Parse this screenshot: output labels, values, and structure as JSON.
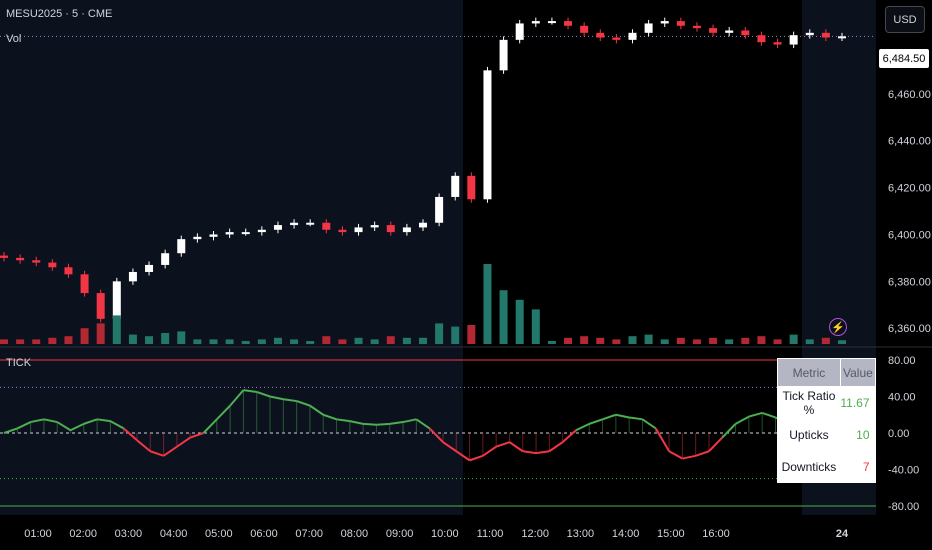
{
  "header": {
    "symbol_label": "MESU2025 · 5 · CME",
    "volume_label": "Vol",
    "currency_button": "USD",
    "current_price": "6,484.50"
  },
  "indicator": {
    "name": "TICK",
    "table": {
      "headers": [
        "Metric",
        "Value"
      ],
      "rows": [
        {
          "metric": "Tick Ratio %",
          "value": "11.67"
        },
        {
          "metric": "Upticks",
          "value": "10"
        },
        {
          "metric": "Downticks",
          "value": "7"
        }
      ]
    }
  },
  "colors": {
    "up": "#ffffff",
    "down": "#f23645",
    "vol_up": "#22786a",
    "vol_down": "#b22833",
    "osc_up": "#4caf50",
    "osc_down": "#f23645",
    "premarket_bg": "#0c111e"
  },
  "chart_data": [
    {
      "type": "candlestick",
      "y_ticks": [
        "6,360.00",
        "6,380.00",
        "6,400.00",
        "6,420.00",
        "6,440.00",
        "6,460.00"
      ],
      "ylim": [
        6352,
        6500
      ],
      "last_price": 6484.5,
      "approx_closes": [
        6390,
        6389,
        6388,
        6386,
        6383,
        6375,
        6364,
        6380,
        6384,
        6387,
        6392,
        6398,
        6399,
        6400,
        6401,
        6401,
        6402,
        6404,
        6405,
        6405,
        6402,
        6401,
        6403,
        6404,
        6401,
        6403,
        6405,
        6416,
        6425,
        6415,
        6470,
        6483,
        6490,
        6491,
        6491,
        6489,
        6486,
        6484,
        6483,
        6486,
        6490,
        6491,
        6489,
        6488,
        6486,
        6487,
        6485,
        6482,
        6481,
        6485,
        6486,
        6484,
        6484.5
      ]
    },
    {
      "type": "oscillator",
      "name": "TICK",
      "y_ticks": [
        "80.00",
        "40.00",
        "0.00",
        "-40.00",
        "-80.00"
      ],
      "ylim": [
        -85,
        85
      ],
      "x_ticks": [
        "01:00",
        "02:00",
        "03:00",
        "04:00",
        "05:00",
        "06:00",
        "07:00",
        "08:00",
        "09:00",
        "10:00",
        "11:00",
        "12:00",
        "13:00",
        "14:00",
        "15:00",
        "16:00",
        "24"
      ],
      "approx_values": [
        0,
        5,
        12,
        15,
        12,
        3,
        10,
        15,
        13,
        5,
        -8,
        -20,
        -25,
        -15,
        -5,
        0,
        15,
        30,
        47,
        45,
        40,
        37,
        35,
        30,
        20,
        15,
        13,
        10,
        9,
        10,
        12,
        15,
        5,
        -10,
        -20,
        -30,
        -25,
        -15,
        -10,
        -20,
        -22,
        -20,
        -10,
        3,
        10,
        15,
        20,
        17,
        15,
        5,
        -20,
        -28,
        -25,
        -20,
        -5,
        10,
        18,
        22,
        17,
        10,
        -5,
        -20,
        -25,
        -20
      ]
    }
  ]
}
